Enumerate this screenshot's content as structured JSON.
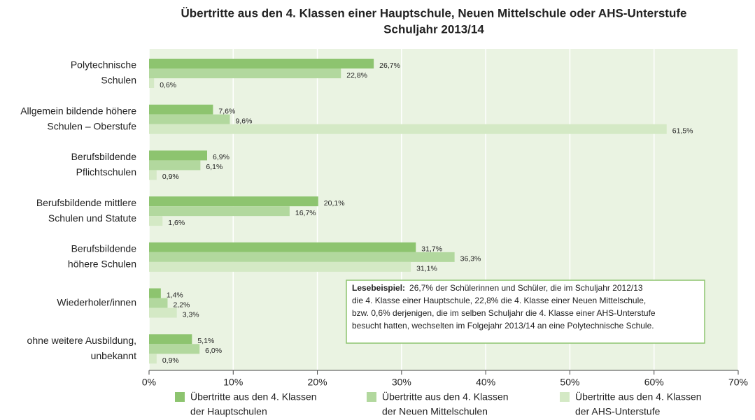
{
  "chart_data": {
    "type": "bar",
    "orientation": "horizontal",
    "title": [
      "Übertritte aus den 4. Klassen einer Hauptschule, Neuen Mittelschule oder AHS-Unterstufe",
      "Schuljahr 2013/14"
    ],
    "categories": [
      [
        "Polytechnische",
        "Schulen"
      ],
      [
        "Allgemein bildende höhere",
        "Schulen – Oberstufe"
      ],
      [
        "Berufsbildende",
        "Pflichtschulen"
      ],
      [
        "Berufsbildende mittlere",
        "Schulen und Statute"
      ],
      [
        "Berufsbildende",
        "höhere Schulen"
      ],
      [
        "Wiederholer/innen"
      ],
      [
        "ohne weitere  Ausbildung,",
        "unbekannt"
      ]
    ],
    "series": [
      {
        "name": [
          "Übertritte aus den 4. Klassen",
          "der Hauptschulen"
        ],
        "color": "#8dc46f",
        "values": [
          26.7,
          7.6,
          6.9,
          20.1,
          31.7,
          1.4,
          5.1
        ],
        "value_labels": [
          "26,7%",
          "7,6%",
          "6,9%",
          "20,1%",
          "31,7%",
          "1,4%",
          "5,1%"
        ]
      },
      {
        "name": [
          "Übertritte aus den 4. Klassen",
          "der Neuen Mittelschulen"
        ],
        "color": "#b2d89e",
        "values": [
          22.8,
          9.6,
          6.1,
          16.7,
          36.3,
          2.2,
          6.0
        ],
        "value_labels": [
          "22,8%",
          "9,6%",
          "6,1%",
          "16,7%",
          "36,3%",
          "2,2%",
          "6,0%"
        ]
      },
      {
        "name": [
          "Übertritte aus den 4. Klassen",
          "der AHS-Unterstufe"
        ],
        "color": "#d4e9c5",
        "values": [
          0.6,
          61.5,
          0.9,
          1.6,
          31.1,
          3.3,
          0.9
        ],
        "value_labels": [
          "0,6%",
          "61,5%",
          "0,9%",
          "1,6%",
          "31,1%",
          "3,3%",
          "0,9%"
        ]
      }
    ],
    "xlim": [
      0,
      70
    ],
    "xticks": [
      {
        "value": 0,
        "label": "0%"
      },
      {
        "value": 10,
        "label": "10%"
      },
      {
        "value": 20,
        "label": "20%"
      },
      {
        "value": 30,
        "label": "30%"
      },
      {
        "value": 40,
        "label": "40%"
      },
      {
        "value": 50,
        "label": "50%"
      },
      {
        "value": 60,
        "label": "60%"
      },
      {
        "value": 70,
        "label": "70%"
      }
    ],
    "grid": true,
    "annotation": {
      "title": "Lesebeispiel:",
      "lines": [
        "26,7% der Schülerinnen und Schüler, die im Schuljahr 2012/13",
        "die 4. Klasse einer Hauptschule, 22,8% die 4. Klasse einer Neuen Mittelschule,",
        "bzw. 0,6% derjenigen, die im selben Schuljahr die 4. Klasse einer AHS-Unterstufe",
        "besucht hatten, wechselten im Folgejahr 2013/14 an eine Polytechnische Schule."
      ]
    }
  }
}
